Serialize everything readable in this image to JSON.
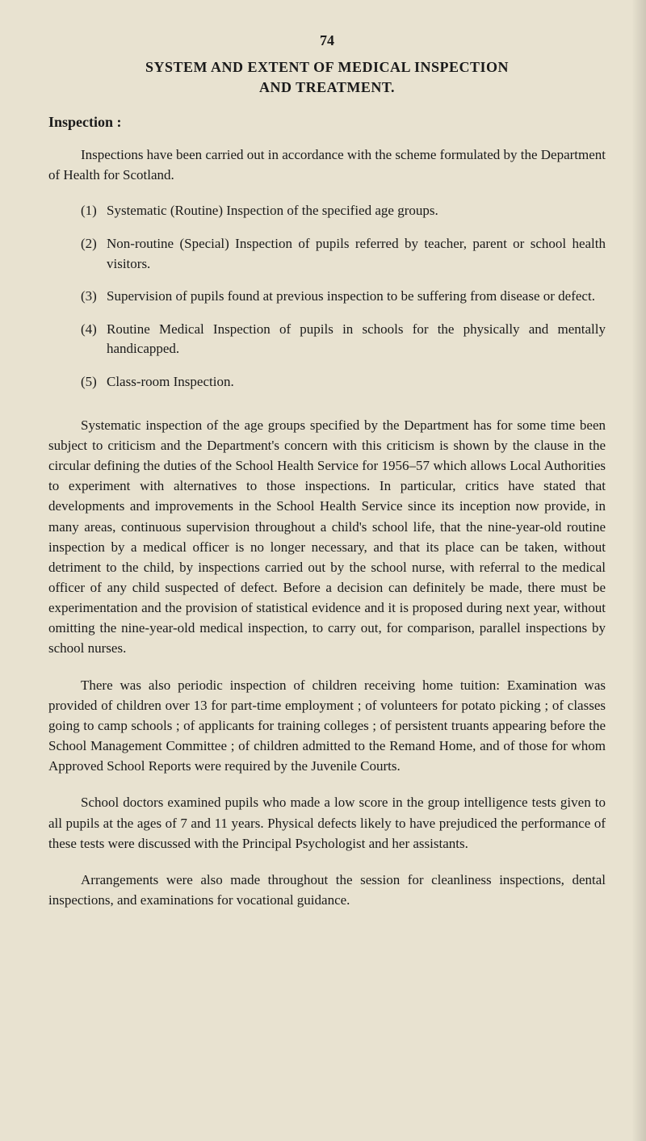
{
  "page_number": "74",
  "title_line1": "SYSTEM AND EXTENT OF MEDICAL INSPECTION",
  "title_line2": "AND TREATMENT.",
  "section_heading": "Inspection :",
  "intro": "Inspections have been carried out in accordance with the scheme formulated by the Department of Health for Scotland.",
  "list_items": [
    {
      "marker": "(1)",
      "text": "Systematic (Routine) Inspection of the specified age groups."
    },
    {
      "marker": "(2)",
      "text": "Non-routine (Special) Inspection of pupils referred by teacher, parent or school health visitors."
    },
    {
      "marker": "(3)",
      "text": "Supervision of pupils found at previous inspection to be suffering from disease or defect."
    },
    {
      "marker": "(4)",
      "text": "Routine Medical Inspection of pupils in schools for the physically and mentally handicapped."
    },
    {
      "marker": "(5)",
      "text": "Class-room Inspection."
    }
  ],
  "paragraphs": [
    "Systematic inspection of the age groups specified by the Department has for some time been subject to criticism and the Department's concern with this criticism is shown by the clause in the circular defining the duties of the School Health Service for 1956–57 which allows Local Authorities to experiment with alternatives to those inspections. In particular, critics have stated that developments and improvements in the School Health Service since its inception now provide, in many areas, continuous supervision throughout a child's school life, that the nine-year-old routine inspection by a medical officer is no longer necessary, and that its place can be taken, without detriment to the child, by inspections carried out by the school nurse, with referral to the medical officer of any child suspected of defect. Before a decision can definitely be made, there must be experimentation and the provision of statistical evidence and it is proposed during next year, without omitting the nine-year-old medical inspection, to carry out, for comparison, parallel inspections by school nurses.",
    "There was also periodic inspection of children receiving home tuition: Examination was provided of children over 13 for part-time employment ; of volunteers for potato picking ; of classes going to camp schools ; of applicants for training colleges ; of persistent truants appearing before the School Management Committee ; of children admitted to the Remand Home, and of those for whom Approved School Reports were required by the Juvenile Courts.",
    "School doctors examined pupils who made a low score in the group intelligence tests given to all pupils at the ages of 7 and 11 years. Physical defects likely to have prejudiced the performance of these tests were discussed with the Principal Psychologist and her assistants.",
    "Arrangements were also made throughout the session for cleanliness inspections, dental inspections, and examinations for vocational guidance."
  ],
  "colors": {
    "background": "#e8e2d0",
    "text": "#1a1a1a"
  },
  "typography": {
    "body_fontsize": 17,
    "heading_fontsize": 18,
    "font_family": "Georgia, Times New Roman, serif"
  }
}
